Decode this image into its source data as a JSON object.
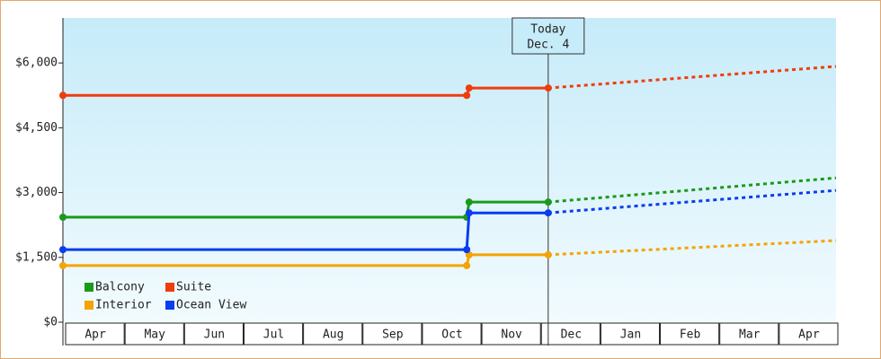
{
  "chart_data": {
    "type": "line",
    "x": [
      0,
      6.79,
      6.83,
      8.16,
      13
    ],
    "xlim": [
      0,
      13
    ],
    "xticks": [
      {
        "value": 0.5,
        "label": "Apr"
      },
      {
        "value": 1.5,
        "label": "May"
      },
      {
        "value": 2.5,
        "label": "Jun"
      },
      {
        "value": 3.5,
        "label": "Jul"
      },
      {
        "value": 4.5,
        "label": "Aug"
      },
      {
        "value": 5.5,
        "label": "Sep"
      },
      {
        "value": 6.5,
        "label": "Oct"
      },
      {
        "value": 7.5,
        "label": "Nov"
      },
      {
        "value": 8.5,
        "label": "Dec"
      },
      {
        "value": 9.5,
        "label": "Jan"
      },
      {
        "value": 10.5,
        "label": "Feb"
      },
      {
        "value": 11.5,
        "label": "Mar"
      },
      {
        "value": 12.5,
        "label": "Apr"
      }
    ],
    "ylim": [
      0,
      7000
    ],
    "yticks": [
      {
        "value": 0,
        "label": "$0"
      },
      {
        "value": 1500,
        "label": "$1,500"
      },
      {
        "value": 3000,
        "label": "$3,000"
      },
      {
        "value": 4500,
        "label": "$4,500"
      },
      {
        "value": 6000,
        "label": "$6,000"
      }
    ],
    "today": {
      "x": 8.16,
      "label": [
        "Today",
        "Dec. 4"
      ]
    },
    "legend": "bottom-left",
    "series": [
      {
        "name": "Balcony",
        "color": "#1a9a1a",
        "values": [
          2430,
          2430,
          2780,
          2780,
          3340
        ]
      },
      {
        "name": "Suite",
        "color": "#f03c0c",
        "values": [
          5250,
          5250,
          5420,
          5420,
          5920
        ]
      },
      {
        "name": "Interior",
        "color": "#f5a300",
        "values": [
          1310,
          1310,
          1560,
          1560,
          1890
        ]
      },
      {
        "name": "Ocean View",
        "color": "#0a3cf0",
        "values": [
          1680,
          1680,
          2530,
          2530,
          3050
        ]
      }
    ]
  }
}
